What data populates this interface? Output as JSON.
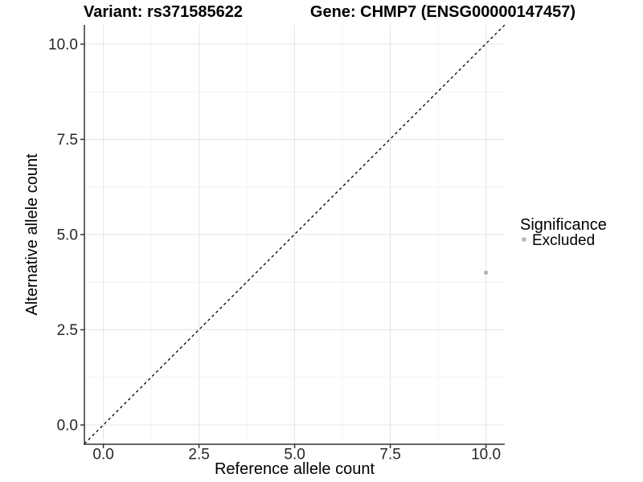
{
  "chart_data": {
    "type": "scatter",
    "titles": {
      "left": "Variant: rs371585622",
      "right": "Gene: CHMP7 (ENSG00000147457)"
    },
    "xlabel": "Reference allele count",
    "ylabel": "Alternative allele count",
    "xlim": [
      0,
      10
    ],
    "ylim": [
      0,
      10
    ],
    "x_ticks": [
      0.0,
      2.5,
      5.0,
      7.5,
      10.0
    ],
    "y_ticks": [
      0.0,
      2.5,
      5.0,
      7.5,
      10.0
    ],
    "x_tick_labels": [
      "0.0",
      "2.5",
      "5.0",
      "7.5",
      "10.0"
    ],
    "y_tick_labels": [
      "10.0",
      "7.5",
      "5.0",
      "2.5",
      "0.0"
    ],
    "grid": {
      "major": true,
      "minor": true,
      "major_color": "#e6e6e6",
      "minor_color": "#f2f2f2"
    },
    "reference_line": {
      "equation": "y = x",
      "style": "dashed",
      "color": "#000000"
    },
    "points": [
      {
        "x": 10,
        "y": 4,
        "group": "Excluded"
      }
    ],
    "legend": {
      "title": "Significance",
      "position": "right",
      "entries": [
        {
          "label": "Excluded",
          "color": "#b5b5b5"
        }
      ]
    },
    "colors": {
      "axis_line": "#333333",
      "background": "#ffffff"
    }
  }
}
